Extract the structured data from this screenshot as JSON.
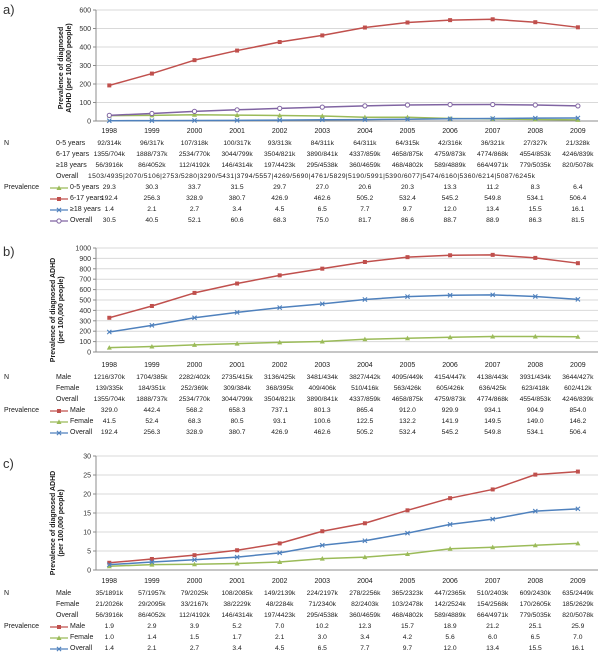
{
  "row_headers": {
    "n": "N",
    "prevalence": "Prevalence"
  },
  "colors": {
    "gridline": "#D9D9D9",
    "axis": "#8C8C8C",
    "tick_text": "#333333"
  },
  "chart_data": [
    {
      "panel_label": "a)",
      "type": "line",
      "ylabel_lines": [
        "Prevalence of diagnosed",
        "ADHD (per 100,000 people)"
      ],
      "ylim": [
        0,
        600
      ],
      "ytick_step": 100,
      "grid": true,
      "x": [
        "1998",
        "1999",
        "2000",
        "2001",
        "2002",
        "2003",
        "2004",
        "2005",
        "2006",
        "2007",
        "2008",
        "2009"
      ],
      "series": [
        {
          "name": "0-5 years",
          "color": "#9BBB59",
          "marker": "triangle",
          "values": [
            "29.3",
            "30.3",
            "33.7",
            "31.5",
            "29.7",
            "27.0",
            "20.6",
            "20.3",
            "13.3",
            "11.2",
            "8.3",
            "6.4"
          ]
        },
        {
          "name": "6-17 years",
          "color": "#C0504D",
          "marker": "square",
          "values": [
            "192.4",
            "256.3",
            "328.9",
            "380.7",
            "426.9",
            "462.6",
            "505.2",
            "532.4",
            "545.2",
            "549.8",
            "534.1",
            "506.4"
          ]
        },
        {
          "name": "≥18 years",
          "color": "#4F81BD",
          "marker": "x",
          "values": [
            "1.4",
            "2.1",
            "2.7",
            "3.4",
            "4.5",
            "6.5",
            "7.7",
            "9.7",
            "12.0",
            "13.4",
            "15.5",
            "16.1"
          ]
        },
        {
          "name": "Overall",
          "color": "#8064A2",
          "marker": "circle",
          "values": [
            "30.5",
            "40.5",
            "52.1",
            "60.6",
            "68.3",
            "75.0",
            "81.7",
            "86.6",
            "88.7",
            "88.9",
            "86.3",
            "81.5"
          ]
        }
      ],
      "n_rows": [
        {
          "label": "0-5 years",
          "values": [
            "92/314k",
            "96/317k",
            "107/318k",
            "100/317k",
            "93/313k",
            "84/311k",
            "64/311k",
            "64/315k",
            "42/316k",
            "36/321k",
            "27/327k",
            "21/328k"
          ]
        },
        {
          "label": "6-17 years",
          "values": [
            "1355/704k",
            "1888/737k",
            "2534/770k",
            "3044/799k",
            "3504/821k",
            "3890/841k",
            "4337/859k",
            "4658/875k",
            "4759/873k",
            "4774/868k",
            "4554/853k",
            "4246/839k"
          ]
        },
        {
          "label": "≥18 years",
          "values": [
            "56/3916k",
            "86/4052k",
            "112/4192k",
            "146/4314k",
            "197/4423k",
            "295/4538k",
            "360/4659k",
            "468/4802k",
            "589/4889k",
            "664/4971k",
            "779/5035k",
            "820/5078k"
          ]
        },
        {
          "label": "Overall",
          "joined": true,
          "values": [
            "1503/4935",
            "2070/5106",
            "2753/5280",
            "3290/5431",
            "3794/5557",
            "4269/5690",
            "4761/5829",
            "5190/5991",
            "5390/6077",
            "5474/6160",
            "5360/6214",
            "5087/6245k"
          ]
        }
      ]
    },
    {
      "panel_label": "b)",
      "type": "line",
      "ylabel_lines": [
        "Prevalence of diagnosed ADHD",
        "(per 100,000 people)"
      ],
      "ylim": [
        0,
        1000
      ],
      "ytick_step": 100,
      "grid": true,
      "x": [
        "1998",
        "1999",
        "2000",
        "2001",
        "2002",
        "2003",
        "2004",
        "2005",
        "2006",
        "2007",
        "2008",
        "2009"
      ],
      "series": [
        {
          "name": "Male",
          "color": "#C0504D",
          "marker": "square",
          "values": [
            "329.0",
            "442.4",
            "568.2",
            "658.3",
            "737.1",
            "801.3",
            "865.4",
            "912.0",
            "929.9",
            "934.1",
            "904.9",
            "854.0"
          ]
        },
        {
          "name": "Female",
          "color": "#9BBB59",
          "marker": "triangle",
          "values": [
            "41.5",
            "52.4",
            "68.3",
            "80.5",
            "93.1",
            "100.6",
            "122.5",
            "132.2",
            "141.9",
            "149.5",
            "149.0",
            "146.2"
          ]
        },
        {
          "name": "Overall",
          "color": "#4F81BD",
          "marker": "x",
          "values": [
            "192.4",
            "256.3",
            "328.9",
            "380.7",
            "426.9",
            "462.6",
            "505.2",
            "532.4",
            "545.2",
            "549.8",
            "534.1",
            "506.4"
          ]
        }
      ],
      "n_rows": [
        {
          "label": "Male",
          "values": [
            "1216/370k",
            "1704/385k",
            "2282/402k",
            "2735/415k",
            "3136/425k",
            "3481/434k",
            "3827/442k",
            "4095/449k",
            "4154/447k",
            "4138/443k",
            "3931/434k",
            "3644/427k"
          ]
        },
        {
          "label": "Female",
          "values": [
            "139/335k",
            "184/351k",
            "252/369k",
            "309/384k",
            "368/395k",
            "409/406k",
            "510/416k",
            "563/426k",
            "605/426k",
            "636/425k",
            "623/418k",
            "602/412k"
          ]
        },
        {
          "label": "Overall",
          "values": [
            "1355/704k",
            "1888/737k",
            "2534/770k",
            "3044/799k",
            "3504/821k",
            "3890/841k",
            "4337/859k",
            "4658/875k",
            "4759/873k",
            "4774/868k",
            "4554/853k",
            "4246/839k"
          ]
        }
      ]
    },
    {
      "panel_label": "c)",
      "type": "line",
      "ylabel_lines": [
        "Prevalence of diagnosed ADHD",
        "(per 100,000 people)"
      ],
      "ylim": [
        0,
        30
      ],
      "ytick_step": 5,
      "grid": true,
      "x": [
        "1998",
        "1999",
        "2000",
        "2001",
        "2002",
        "2003",
        "2004",
        "2005",
        "2006",
        "2007",
        "2008",
        "2009"
      ],
      "series": [
        {
          "name": "Male",
          "color": "#C0504D",
          "marker": "square",
          "values": [
            "1.9",
            "2.9",
            "3.9",
            "5.2",
            "7.0",
            "10.2",
            "12.3",
            "15.7",
            "18.9",
            "21.2",
            "25.1",
            "25.9"
          ]
        },
        {
          "name": "Female",
          "color": "#9BBB59",
          "marker": "triangle",
          "values": [
            "1.0",
            "1.4",
            "1.5",
            "1.7",
            "2.1",
            "3.0",
            "3.4",
            "4.2",
            "5.6",
            "6.0",
            "6.5",
            "7.0"
          ]
        },
        {
          "name": "Overall",
          "color": "#4F81BD",
          "marker": "x",
          "values": [
            "1.4",
            "2.1",
            "2.7",
            "3.4",
            "4.5",
            "6.5",
            "7.7",
            "9.7",
            "12.0",
            "13.4",
            "15.5",
            "16.1"
          ]
        }
      ],
      "n_rows": [
        {
          "label": "Male",
          "values": [
            "35/1891k",
            "57/1957k",
            "79/2025k",
            "108/2085k",
            "149/2139k",
            "224/2197k",
            "278/2256k",
            "365/2323k",
            "447/2365k",
            "510/2403k",
            "609/2430k",
            "635/2449k"
          ]
        },
        {
          "label": "Female",
          "values": [
            "21/2026k",
            "29/2095k",
            "33/2167k",
            "38/2229k",
            "48/2284k",
            "71/2340k",
            "82/2403k",
            "103/2478k",
            "142/2524k",
            "154/2568k",
            "170/2605k",
            "185/2629k"
          ]
        },
        {
          "label": "Overall",
          "values": [
            "56/3916k",
            "86/4052k",
            "112/4192k",
            "146/4314k",
            "197/4423k",
            "295/4538k",
            "360/4659k",
            "468/4802k",
            "589/4889k",
            "664/4971k",
            "779/5035k",
            "820/5078k"
          ]
        }
      ]
    }
  ]
}
